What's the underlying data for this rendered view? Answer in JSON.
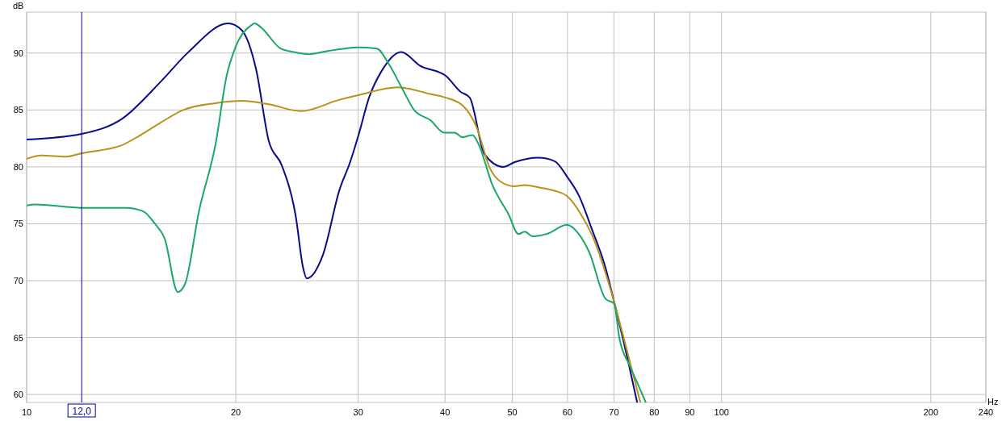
{
  "chart_data": {
    "type": "line",
    "xlabel": "Hz",
    "ylabel": "dB",
    "log": "x",
    "grid": true,
    "xlim": [
      10,
      240
    ],
    "xticks": [
      10,
      20,
      30,
      40,
      50,
      60,
      70,
      80,
      90,
      100,
      200,
      240
    ],
    "ylim": [
      59.3,
      93.6
    ],
    "yticks": [
      60,
      65,
      70,
      75,
      80,
      85,
      90
    ],
    "ref_lines": [
      {
        "axis": "x",
        "value": 12,
        "label": "12,0",
        "color": "#0000a0"
      }
    ],
    "series": [
      {
        "color": "#0a0a8a",
        "x": [
          10,
          12,
          13.7,
          15.6,
          17.1,
          19.5,
          20.4,
          21.4,
          22.3,
          23.3,
          24.4,
          25,
          25.3,
          26.7,
          28.2,
          29.2,
          30,
          31.1,
          32.4,
          34.6,
          36.8,
          40.1,
          42.1,
          43.4,
          45.6,
          48.5,
          50.3,
          54.5,
          57.5,
          60,
          62.3,
          65,
          68.1,
          70,
          73.2,
          75.6
        ],
        "values": [
          82.4,
          82.9,
          84.2,
          87.5,
          90.1,
          92.6,
          92,
          88.5,
          82.3,
          80.1,
          75.6,
          71.1,
          70.2,
          72.3,
          78,
          80.4,
          82.7,
          86.1,
          88.4,
          90.1,
          88.9,
          88,
          86.6,
          86.1,
          81.1,
          80,
          80.4,
          80.8,
          80.5,
          79.1,
          77.5,
          74.6,
          71.1,
          68.2,
          63.2,
          59.3
        ]
      },
      {
        "color": "#b8921a",
        "x": [
          10,
          10.5,
          11.4,
          12,
          13.7,
          14.5,
          15.6,
          16.8,
          18.7,
          20.4,
          22.3,
          24.8,
          28.2,
          30,
          34.2,
          38.1,
          40,
          42.4,
          44.4,
          46.4,
          48.1,
          50.3,
          52.1,
          54.5,
          57.5,
          60,
          62.8,
          65,
          70,
          73.2,
          76.4
        ],
        "values": [
          80.7,
          81,
          80.9,
          81.2,
          81.9,
          82.7,
          83.9,
          85,
          85.6,
          85.8,
          85.5,
          84.9,
          85.9,
          86.3,
          87,
          86.4,
          86.1,
          85.4,
          83.5,
          79.9,
          78.7,
          78.3,
          78.4,
          78.2,
          77.9,
          77.4,
          75.8,
          74.1,
          68.2,
          63.7,
          59.3
        ]
      },
      {
        "color": "#18a868",
        "x": [
          10,
          10.3,
          12,
          13.9,
          14.7,
          15.3,
          15.8,
          16.5,
          16.9,
          17.7,
          18.7,
          19.4,
          20,
          21,
          21.3,
          21.7,
          23.2,
          24.2,
          25.5,
          27.2,
          28.7,
          30,
          31.9,
          33.3,
          34.9,
          36.1,
          38.1,
          39.9,
          41.3,
          42.4,
          43.8,
          44.7,
          46.8,
          49.4,
          51,
          52.1,
          53.5,
          56,
          59.9,
          62.3,
          64.5,
          68.1,
          70,
          71.3,
          73.8,
          75.4,
          77.8
        ],
        "values": [
          76.6,
          76.7,
          76.4,
          76.4,
          76.1,
          75,
          73.7,
          69,
          69.7,
          76.1,
          82,
          88,
          90.6,
          92.4,
          92.6,
          92.3,
          90.4,
          90.1,
          89.9,
          90.2,
          90.4,
          90.5,
          90.4,
          88.9,
          86.6,
          85,
          84.1,
          83,
          83,
          82.6,
          82.8,
          82,
          78.4,
          75.8,
          74.1,
          74.3,
          73.9,
          74.1,
          74.9,
          74.1,
          72.5,
          68.4,
          68,
          64.9,
          62.5,
          61.2,
          59.3
        ]
      }
    ]
  }
}
